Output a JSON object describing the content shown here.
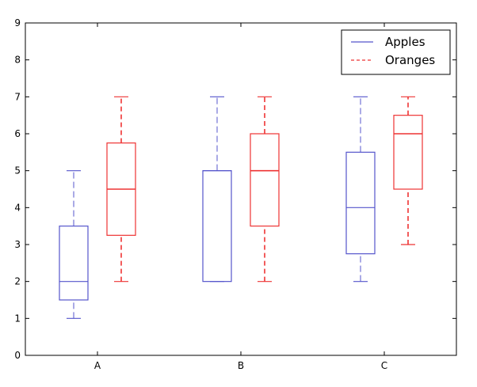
{
  "chart_data": {
    "type": "box",
    "categories": [
      "A",
      "B",
      "C"
    ],
    "ylim": [
      0,
      9
    ],
    "yticks": [
      "0",
      "1",
      "2",
      "3",
      "4",
      "5",
      "6",
      "7",
      "8",
      "9"
    ],
    "grid": false,
    "legend_position": "top-right",
    "series": [
      {
        "name": "Apples",
        "color": "#5555cc",
        "boxes": [
          {
            "category": "A",
            "whisker_low": 1,
            "q1": 1.5,
            "median": 2,
            "q3": 3.5,
            "whisker_high": 5
          },
          {
            "category": "B",
            "whisker_low": 2,
            "q1": 2,
            "median": 5,
            "q3": 5,
            "whisker_high": 7
          },
          {
            "category": "C",
            "whisker_low": 2,
            "q1": 2.75,
            "median": 4,
            "q3": 5.5,
            "whisker_high": 7
          }
        ]
      },
      {
        "name": "Oranges",
        "color": "#ee3333",
        "boxes": [
          {
            "category": "A",
            "whisker_low": 2,
            "q1": 3.25,
            "median": 4.5,
            "q3": 5.75,
            "whisker_high": 7
          },
          {
            "category": "B",
            "whisker_low": 2,
            "q1": 3.5,
            "median": 5,
            "q3": 6,
            "whisker_high": 7
          },
          {
            "category": "C",
            "whisker_low": 3,
            "q1": 4.5,
            "median": 6,
            "q3": 6.5,
            "whisker_high": 7
          }
        ]
      }
    ]
  }
}
